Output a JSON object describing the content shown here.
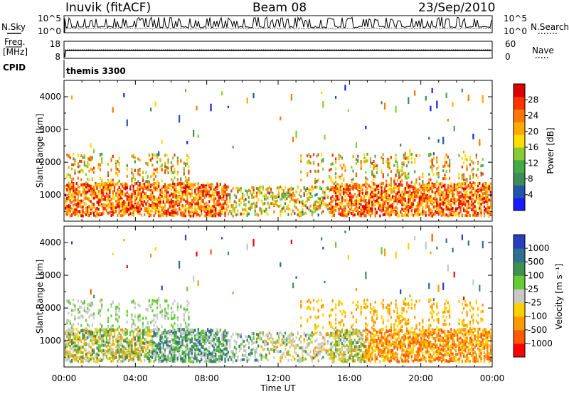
{
  "header": {
    "station": "Inuvik (fitACF)",
    "beam": "Beam 08",
    "date": "23/Sep/2010"
  },
  "strip_panels": {
    "nsky_label": "N.Sky",
    "nsearch_label": "N.Search",
    "noise_ticks": [
      "10^5",
      "10^0"
    ],
    "freq_label_1": "Freq.",
    "freq_label_2": "[MHz]",
    "freq_ticks": [
      "18",
      "8"
    ],
    "nave_label": "Nave",
    "nave_ticks": [
      "60",
      "0"
    ],
    "cpid_label": "CPID",
    "cpid_value": "themis 3300"
  },
  "chart_data": [
    {
      "type": "heatmap",
      "panel": "power",
      "ylabel": "Slant Range [km]",
      "xlabel": "",
      "ylim": [
        200,
        4500
      ],
      "yticks": [
        1000,
        2000,
        3000,
        4000
      ],
      "x": [
        "00:00",
        "04:00",
        "08:00",
        "12:00",
        "16:00",
        "20:00",
        "00:00"
      ],
      "colorbar": {
        "label": "Power [dB]",
        "range": [
          0,
          32
        ],
        "ticks": [
          4,
          8,
          12,
          16,
          20,
          24,
          28
        ],
        "colors": [
          "#1a1aff",
          "#2255aa",
          "#3c8c5a",
          "#44aa44",
          "#88cc33",
          "#ffdd00",
          "#ffaa00",
          "#ff7700",
          "#ff3300",
          "#dd0000"
        ]
      }
    },
    {
      "type": "heatmap",
      "panel": "velocity",
      "ylabel": "Slant Range [km]",
      "xlabel": "Time UT",
      "ylim": [
        200,
        4500
      ],
      "yticks": [
        1000,
        2000,
        3000,
        4000
      ],
      "x": [
        "00:00",
        "04:00",
        "08:00",
        "12:00",
        "16:00",
        "20:00",
        "00:00"
      ],
      "colorbar": {
        "label": "Velocity [m s⁻¹]",
        "ticks": [
          "1000",
          "500",
          "100",
          "25",
          "-25",
          "-100",
          "-500",
          "-1000"
        ],
        "colors": [
          "#2a3fbf",
          "#2f6f8f",
          "#3f8f4f",
          "#66cc33",
          "#c8c8c8",
          "#ffd000",
          "#ff9900",
          "#ff5a00",
          "#ff0000"
        ]
      }
    }
  ]
}
